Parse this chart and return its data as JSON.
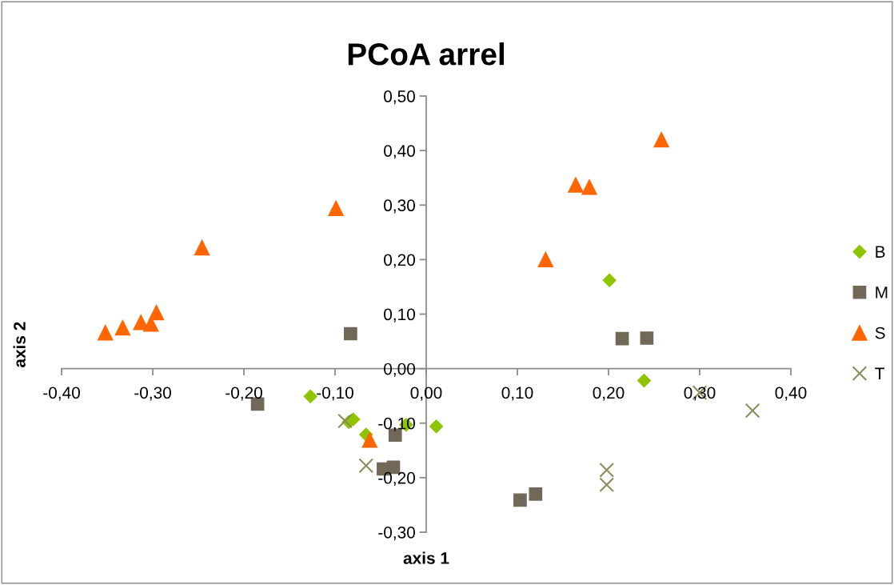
{
  "chart_data": {
    "type": "scatter",
    "title": "PCoA arrel",
    "xlabel": "axis 1",
    "ylabel": "axis 2",
    "legend": "right",
    "grid": false,
    "xlim": [
      -0.4,
      0.4
    ],
    "ylim": [
      -0.3,
      0.5
    ],
    "xticks": [
      {
        "value": -0.4,
        "label": "-0,40"
      },
      {
        "value": -0.3,
        "label": "-0,30"
      },
      {
        "value": -0.2,
        "label": "-0,20"
      },
      {
        "value": -0.1,
        "label": "-0,10"
      },
      {
        "value": 0,
        "label": "0,00"
      },
      {
        "value": 0.1,
        "label": "0,10"
      },
      {
        "value": 0.2,
        "label": "0,20"
      },
      {
        "value": 0.3,
        "label": "0,30"
      },
      {
        "value": 0.4,
        "label": "0,40"
      }
    ],
    "yticks": [
      {
        "value": -0.3,
        "label": "-0,30"
      },
      {
        "value": -0.2,
        "label": "-0,20"
      },
      {
        "value": -0.1,
        "label": "-0,10"
      },
      {
        "value": 0,
        "label": "0,00"
      },
      {
        "value": 0.1,
        "label": "0,10"
      },
      {
        "value": 0.2,
        "label": "0,20"
      },
      {
        "value": 0.3,
        "label": "0,30"
      },
      {
        "value": 0.4,
        "label": "0,40"
      },
      {
        "value": 0.5,
        "label": "0,50"
      }
    ],
    "series": [
      {
        "name": "B",
        "color": "#8fc400",
        "marker": "diamond",
        "x": [
          0.201,
          0.239,
          0.011,
          -0.127,
          -0.085,
          -0.08,
          -0.066,
          -0.022
        ],
        "values": [
          0.162,
          -0.022,
          -0.106,
          -0.051,
          -0.098,
          -0.093,
          -0.121,
          -0.103
        ]
      },
      {
        "name": "M",
        "color": "#716858",
        "marker": "square",
        "x": [
          -0.083,
          0.215,
          0.242,
          -0.185,
          -0.034,
          -0.047,
          -0.036,
          0.103,
          0.12
        ],
        "values": [
          0.064,
          0.055,
          0.056,
          -0.065,
          -0.122,
          -0.184,
          -0.181,
          -0.241,
          -0.23
        ]
      },
      {
        "name": "S",
        "color": "#ff6600",
        "marker": "triangle",
        "x": [
          -0.352,
          -0.333,
          -0.313,
          -0.302,
          -0.296,
          -0.246,
          -0.099,
          0.131,
          0.164,
          0.179,
          0.258,
          -0.062
        ],
        "values": [
          0.066,
          0.075,
          0.085,
          0.082,
          0.103,
          0.222,
          0.294,
          0.2,
          0.337,
          0.333,
          0.42,
          -0.131
        ]
      },
      {
        "name": "T",
        "color": "#8c8c5c",
        "marker": "cross",
        "x": [
          -0.089,
          -0.066,
          0.198,
          0.198,
          0.3,
          0.358
        ],
        "values": [
          -0.096,
          -0.178,
          -0.186,
          -0.213,
          -0.044,
          -0.077
        ]
      }
    ]
  }
}
